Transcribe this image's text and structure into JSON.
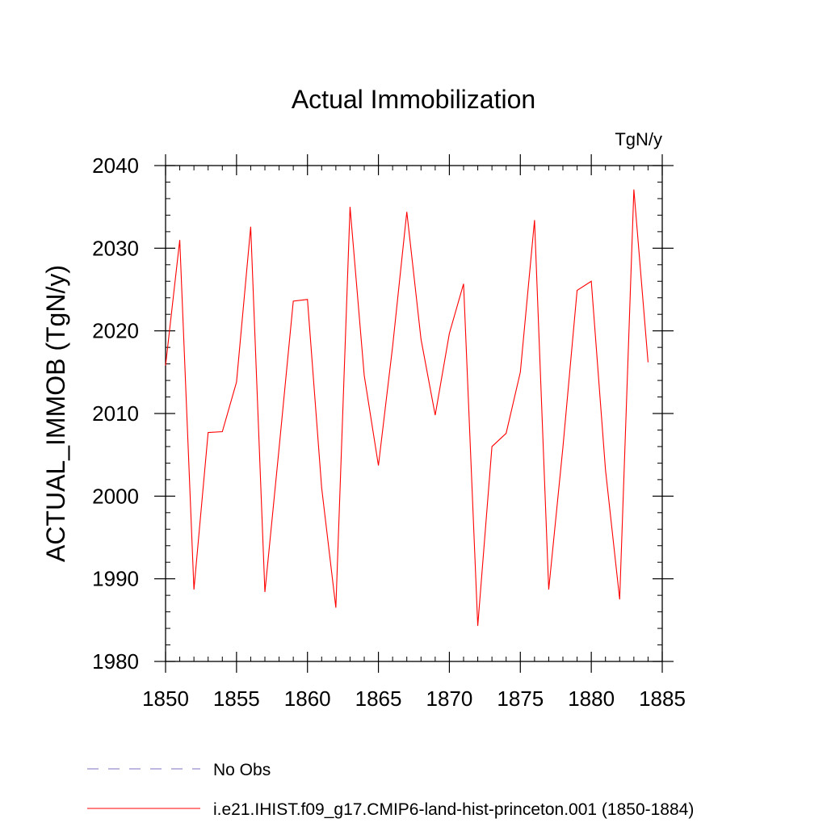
{
  "chart_data": {
    "type": "line",
    "title": "Actual Immobilization",
    "units_label": "TgN/y",
    "ylabel": "ACTUAL_IMMOB  (TgN/y)",
    "xlabel": "",
    "xlim": [
      1850,
      1885
    ],
    "ylim": [
      1980,
      2040
    ],
    "x_ticks": [
      "1850",
      "1855",
      "1860",
      "1865",
      "1870",
      "1875",
      "1880",
      "1885"
    ],
    "y_ticks": [
      "1980",
      "1990",
      "2000",
      "2010",
      "2020",
      "2030",
      "2040"
    ],
    "grid": false,
    "series": [
      {
        "name": "i.e21.IHIST.f09_g17.CMIP6-land-hist-princeton.001 (1850-1884)",
        "color": "#ff0000",
        "style": "solid",
        "x": [
          1850,
          1851,
          1852,
          1853,
          1854,
          1855,
          1856,
          1857,
          1858,
          1859,
          1860,
          1861,
          1862,
          1863,
          1864,
          1865,
          1866,
          1867,
          1868,
          1869,
          1870,
          1871,
          1872,
          1873,
          1874,
          1875,
          1876,
          1877,
          1878,
          1879,
          1880,
          1881,
          1882,
          1883,
          1884
        ],
        "values": [
          2015.8,
          2031.0,
          1988.7,
          2007.7,
          2007.8,
          2013.8,
          2032.6,
          1988.4,
          2005.8,
          2023.6,
          2023.8,
          2001.0,
          1986.5,
          2035.0,
          2014.6,
          2003.7,
          2018.1,
          2034.4,
          2019.0,
          2009.8,
          2019.7,
          2025.7,
          1984.3,
          2006.0,
          2007.6,
          2015.0,
          2033.4,
          1988.7,
          2005.9,
          2024.9,
          2026.0,
          2003.2,
          1987.5,
          2037.1,
          2016.2
        ]
      },
      {
        "name": "No Obs",
        "color": "#7f6fbf",
        "style": "dashed",
        "x": [],
        "values": []
      }
    ],
    "legend_placement": "bottom-left"
  }
}
